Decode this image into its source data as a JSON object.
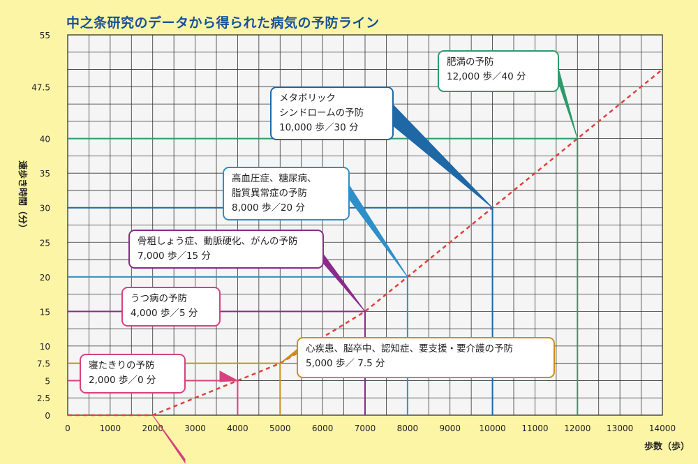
{
  "chart_data": {
    "type": "line",
    "title": "中之条研究のデータから得られた病気の予防ライン",
    "xlabel": "歩数（歩）",
    "ylabel": "速歩き時間（分）",
    "xlim": [
      0,
      14000
    ],
    "ylim": [
      0,
      55
    ],
    "x_ticks": [
      0,
      1000,
      2000,
      3000,
      4000,
      5000,
      6000,
      7000,
      8000,
      9000,
      10000,
      11000,
      12000,
      13000,
      14000
    ],
    "y_ticks": [
      0,
      2.5,
      5,
      7.5,
      10,
      15,
      20,
      25,
      30,
      35,
      40,
      47.5,
      55
    ],
    "grid": true,
    "series": [
      {
        "color": "#e0403a",
        "style": "dashed",
        "points": [
          [
            0,
            0
          ],
          [
            2000,
            0
          ],
          [
            4000,
            5
          ],
          [
            5000,
            7.5
          ],
          [
            7000,
            15
          ],
          [
            8000,
            20
          ],
          [
            10000,
            30
          ],
          [
            12000,
            40
          ],
          [
            14000,
            50
          ]
        ]
      }
    ],
    "thresholds": [
      {
        "lines": [
          "寝たきりの予防",
          "2,000 歩／0 分"
        ],
        "x": 2000,
        "y": 0,
        "color": "#d6427e"
      },
      {
        "lines": [
          "うつ病の予防",
          "4,000 歩／5 分"
        ],
        "x": 4000,
        "y": 5,
        "color": "#d6427e"
      },
      {
        "lines": [
          "心疾患、脳卒中、認知症、要支援・要介護の予防",
          "5,000 歩／ 7.5 分"
        ],
        "x": 5000,
        "y": 7.5,
        "color": "#c9901a"
      },
      {
        "lines": [
          "骨粗しょう症、動脈硬化、がんの予防",
          "7,000 歩／15 分"
        ],
        "x": 7000,
        "y": 15,
        "color": "#8a2b8a"
      },
      {
        "lines": [
          "高血圧症、糖尿病、",
          "脂質異常症の予防",
          "8,000 歩／20 分"
        ],
        "x": 8000,
        "y": 20,
        "color": "#2f8fc9"
      },
      {
        "lines": [
          "メタボリック",
          "シンドロームの予防",
          "10,000 歩／30 分"
        ],
        "x": 10000,
        "y": 30,
        "color": "#1f68a6"
      },
      {
        "lines": [
          "肥満の予防",
          "12,000 歩／40 分"
        ],
        "x": 12000,
        "y": 40,
        "color": "#2f9a6a"
      }
    ]
  },
  "colors": {
    "background": "#fdf5a6",
    "plot_background": "#f5f5f5",
    "grid": "#333333",
    "title": "#16519a"
  }
}
